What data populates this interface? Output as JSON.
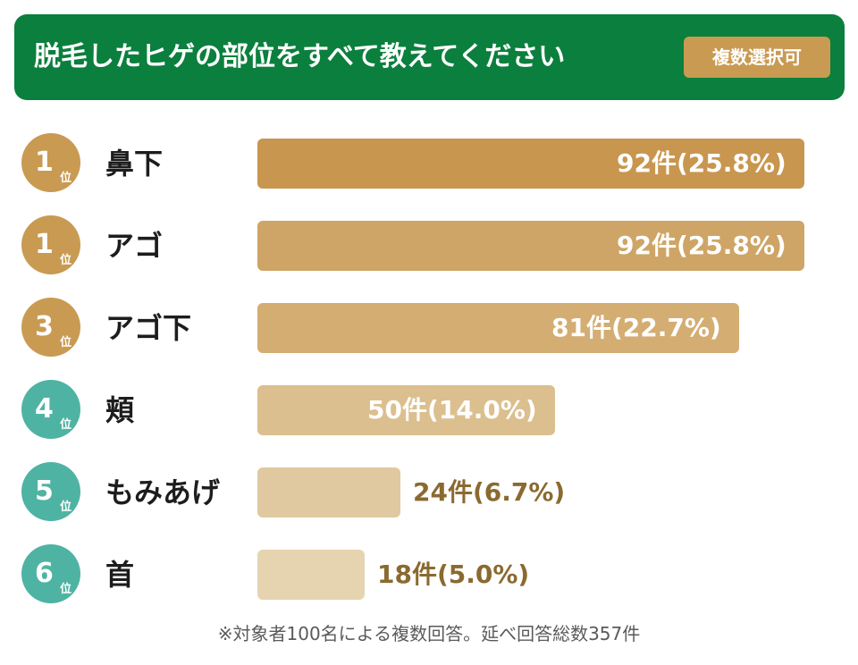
{
  "header": {
    "title": "脱毛したヒゲの部位をすべて教えてください",
    "badge": "複数選択可"
  },
  "colors": {
    "header_bg": "#0b7f3d",
    "badge_bg": "#c99a52",
    "rank_gold": "#c99a52",
    "rank_teal": "#4fb3a3",
    "value_text_inside": "#ffffff",
    "value_text_outside": "#8a6a30"
  },
  "chart_data": {
    "type": "bar",
    "orientation": "horizontal",
    "unit_suffix": "件",
    "rank_suffix": "位",
    "rows": [
      {
        "rank": "1",
        "label": "鼻下",
        "count": 92,
        "value_text": "92件(25.8%)",
        "rank_color": "gold",
        "bar_color": "#c9964f"
      },
      {
        "rank": "1",
        "label": "アゴ",
        "count": 92,
        "value_text": "92件(25.8%)",
        "rank_color": "gold",
        "bar_color": "#cea566"
      },
      {
        "rank": "3",
        "label": "アゴ下",
        "count": 81,
        "value_text": "81件(22.7%)",
        "rank_color": "gold",
        "bar_color": "#d4ad73"
      },
      {
        "rank": "4",
        "label": "頬",
        "count": 50,
        "value_text": "50件(14.0%)",
        "rank_color": "teal",
        "bar_color": "#dbbf8e"
      },
      {
        "rank": "5",
        "label": "もみあげ",
        "count": 24,
        "value_text": "24件(6.7%)",
        "rank_color": "teal",
        "bar_color": "#e0c9a0"
      },
      {
        "rank": "6",
        "label": "首",
        "count": 18,
        "value_text": "18件(5.0%)",
        "rank_color": "teal",
        "bar_color": "#e6d4b0"
      }
    ],
    "max_value": 92,
    "grid": false,
    "legend": "none"
  },
  "footnote": "※対象者100名による複数回答。延べ回答総数357件"
}
